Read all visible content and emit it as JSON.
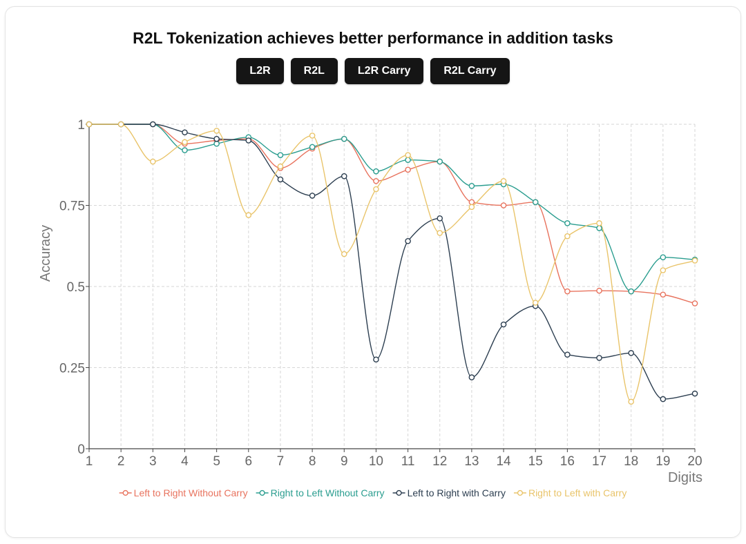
{
  "title": "R2L Tokenization achieves better performance in addition tasks",
  "buttons": [
    {
      "label": "L2R"
    },
    {
      "label": "R2L"
    },
    {
      "label": "L2R Carry"
    },
    {
      "label": "R2L Carry"
    }
  ],
  "chart_data": {
    "type": "line",
    "title": "R2L Tokenization achieves better performance in addition tasks",
    "xlabel": "Digits",
    "ylabel": "Accuracy",
    "xlim": [
      1,
      20
    ],
    "ylim": [
      0,
      1
    ],
    "grid": true,
    "legend_position": "bottom",
    "x": [
      1,
      2,
      3,
      4,
      5,
      6,
      7,
      8,
      9,
      10,
      11,
      12,
      13,
      14,
      15,
      16,
      17,
      18,
      19,
      20
    ],
    "x_ticks": [
      "1",
      "2",
      "3",
      "4",
      "5",
      "6",
      "7",
      "8",
      "9",
      "10",
      "11",
      "12",
      "13",
      "14",
      "15",
      "16",
      "17",
      "18",
      "19",
      "20"
    ],
    "y_ticks": [
      {
        "value": 0,
        "label": "0"
      },
      {
        "value": 0.25,
        "label": "0.25"
      },
      {
        "value": 0.5,
        "label": "0.5"
      },
      {
        "value": 0.75,
        "label": "0.75"
      },
      {
        "value": 1,
        "label": "1"
      }
    ],
    "series": [
      {
        "name": "Left to Right Without Carry",
        "color": "#e8735e",
        "values": [
          1.0,
          1.0,
          1.0,
          0.94,
          0.95,
          0.955,
          0.865,
          0.925,
          0.955,
          0.825,
          0.86,
          0.885,
          0.76,
          0.75,
          0.76,
          0.485,
          0.487,
          0.485,
          0.475,
          0.448
        ]
      },
      {
        "name": "Right to Left Without Carry",
        "color": "#2a9d8f",
        "values": [
          1.0,
          1.0,
          1.0,
          0.92,
          0.94,
          0.96,
          0.905,
          0.93,
          0.955,
          0.855,
          0.89,
          0.885,
          0.81,
          0.815,
          0.76,
          0.695,
          0.68,
          0.485,
          0.59,
          0.583
        ]
      },
      {
        "name": "Left to Right with Carry",
        "color": "#2c3e50",
        "values": [
          1.0,
          1.0,
          1.0,
          0.975,
          0.955,
          0.95,
          0.83,
          0.78,
          0.84,
          0.275,
          0.64,
          0.71,
          0.22,
          0.383,
          0.44,
          0.29,
          0.28,
          0.295,
          0.153,
          0.17
        ]
      },
      {
        "name": "Right to Left with Carry",
        "color": "#e9c46a",
        "values": [
          1.0,
          1.0,
          0.885,
          0.945,
          0.98,
          0.72,
          0.87,
          0.965,
          0.6,
          0.8,
          0.905,
          0.665,
          0.745,
          0.825,
          0.45,
          0.655,
          0.695,
          0.145,
          0.55,
          0.58
        ]
      }
    ]
  }
}
